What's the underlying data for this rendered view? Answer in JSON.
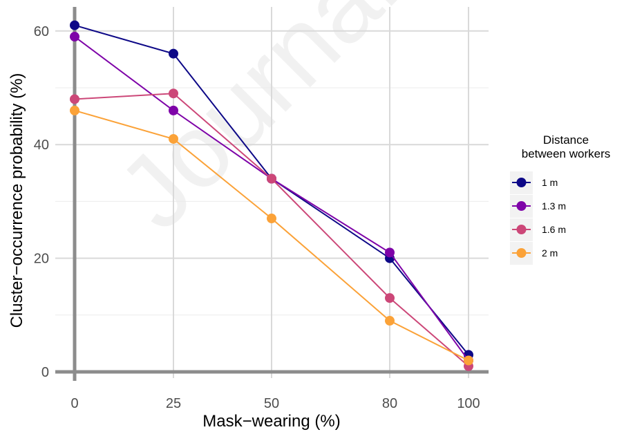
{
  "watermark_text": "Journal",
  "chart_data": {
    "type": "line",
    "x": [
      0,
      25,
      50,
      80,
      100
    ],
    "x_tick_labels": [
      "0",
      "25",
      "50",
      "80",
      "100"
    ],
    "y_ticks": [
      0,
      20,
      40,
      60
    ],
    "y_tick_labels": [
      "0",
      "20",
      "40",
      "60"
    ],
    "ylim": [
      0,
      63
    ],
    "xlabel": "Mask−wearing (%)",
    "ylabel": "Cluster−occurrence probability (%)",
    "grid": true,
    "legend": {
      "title_lines": [
        "Distance",
        "between workers"
      ],
      "position": "right"
    },
    "series": [
      {
        "name": "1 m",
        "color": "#0d0887",
        "values": [
          61,
          56,
          34,
          20,
          3
        ]
      },
      {
        "name": "1.3 m",
        "color": "#7e03a8",
        "values": [
          59,
          46,
          34,
          21,
          2
        ]
      },
      {
        "name": "1.6 m",
        "color": "#cc4778",
        "values": [
          48,
          49,
          34,
          13,
          1
        ]
      },
      {
        "name": "2 m",
        "color": "#fba238",
        "values": [
          46,
          41,
          27,
          9,
          2
        ]
      }
    ]
  }
}
